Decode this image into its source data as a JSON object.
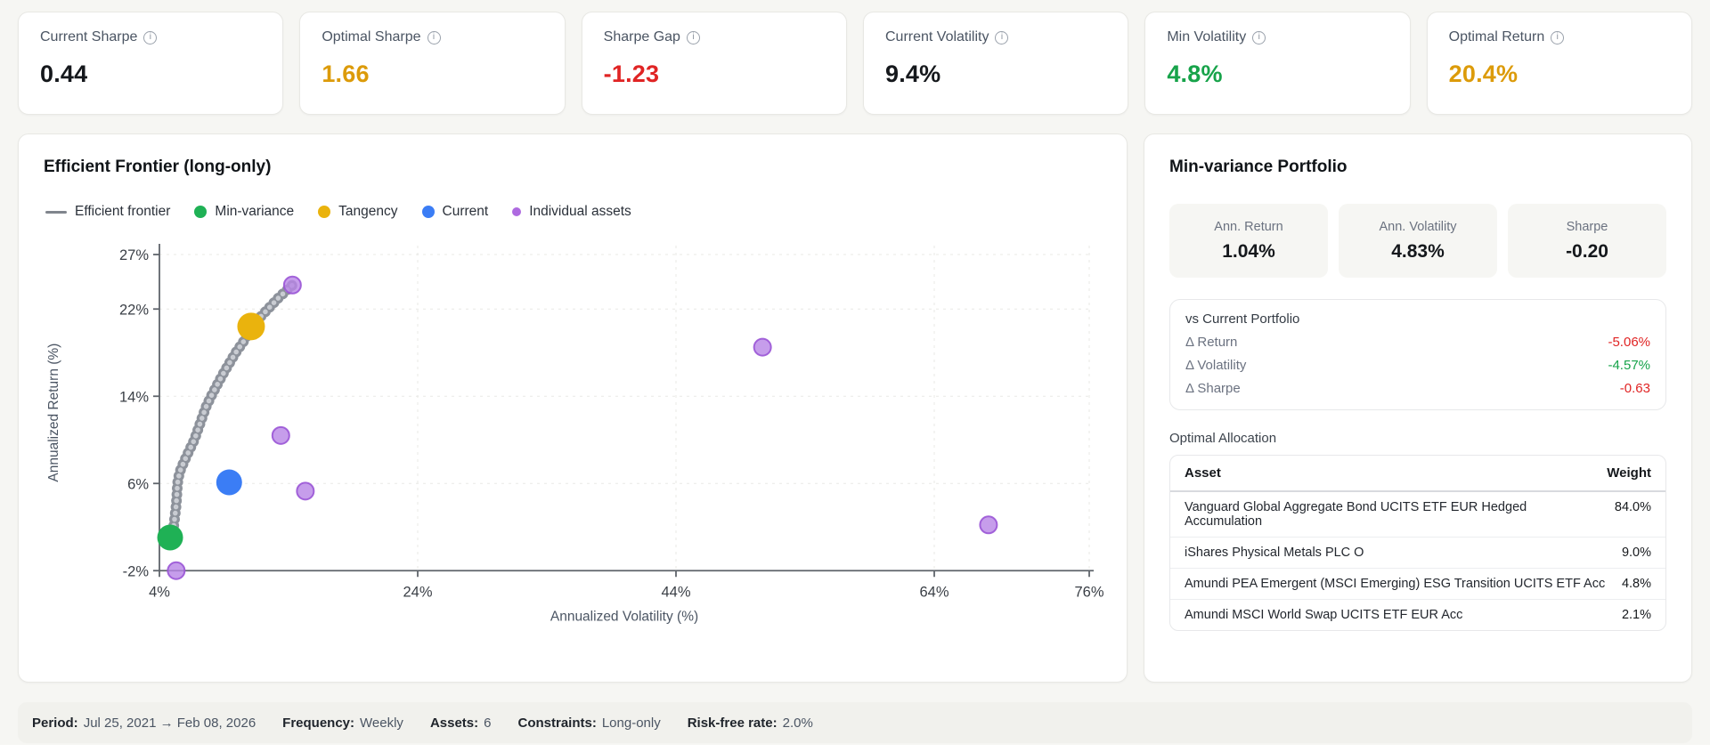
{
  "info_icon": "i",
  "stat_cards": [
    {
      "label": "Current Sharpe",
      "value": "0.44",
      "color": "#15181c"
    },
    {
      "label": "Optimal Sharpe",
      "value": "1.66",
      "color": "#dc9b0a"
    },
    {
      "label": "Sharpe Gap",
      "value": "-1.23",
      "color": "#e02424"
    },
    {
      "label": "Current Volatility",
      "value": "9.4%",
      "color": "#15181c"
    },
    {
      "label": "Min Volatility",
      "value": "4.8%",
      "color": "#17a34a"
    },
    {
      "label": "Optimal Return",
      "value": "20.4%",
      "color": "#dc9b0a"
    }
  ],
  "chart_panel": {
    "title": "Efficient Frontier (long-only)"
  },
  "chart_data": {
    "type": "scatter",
    "title": "Efficient Frontier (long-only)",
    "xlabel": "Annualized Volatility (%)",
    "ylabel": "Annualized Return (%)",
    "xlim": [
      4,
      76
    ],
    "ylim": [
      -2,
      27
    ],
    "x_ticks": [
      4,
      24,
      44,
      64,
      76
    ],
    "y_ticks": [
      -2,
      6,
      14,
      22,
      27
    ],
    "grid": true,
    "legend_position": "top",
    "series": [
      {
        "name": "Efficient frontier",
        "type": "line",
        "style": "dotted",
        "color": "#8d929b",
        "points": [
          [
            5.1,
            1.0
          ],
          [
            5.1,
            2.0
          ],
          [
            5.2,
            3.0
          ],
          [
            5.3,
            4.0
          ],
          [
            5.35,
            5.0
          ],
          [
            5.4,
            6.0
          ],
          [
            5.55,
            7.0
          ],
          [
            5.9,
            8.0
          ],
          [
            6.3,
            9.0
          ],
          [
            6.7,
            10.0
          ],
          [
            7.0,
            11.0
          ],
          [
            7.3,
            12.0
          ],
          [
            7.6,
            13.0
          ],
          [
            8.0,
            14.0
          ],
          [
            8.45,
            15.0
          ],
          [
            8.9,
            16.0
          ],
          [
            9.4,
            17.0
          ],
          [
            9.9,
            18.0
          ],
          [
            10.5,
            19.0
          ],
          [
            11.0,
            20.0
          ],
          [
            11.2,
            20.4
          ],
          [
            11.6,
            21.0
          ],
          [
            12.4,
            22.0
          ],
          [
            13.2,
            23.0
          ],
          [
            14.3,
            24.2
          ]
        ]
      },
      {
        "name": "Individual assets",
        "type": "points",
        "color": "#b885e6",
        "stroke": "#9a55d6",
        "radius": 9.5,
        "points": [
          [
            14.3,
            24.2
          ],
          [
            50.7,
            18.5
          ],
          [
            13.4,
            10.4
          ],
          [
            15.3,
            5.3
          ],
          [
            68.2,
            2.2
          ],
          [
            5.3,
            -2.0
          ]
        ]
      },
      {
        "name": "Current",
        "type": "point",
        "color": "#3b7df5",
        "point": [
          9.4,
          6.1
        ],
        "radius": 14.5
      },
      {
        "name": "Tangency",
        "type": "point",
        "color": "#eab30d",
        "point": [
          11.1,
          20.4
        ],
        "radius": 15.5
      },
      {
        "name": "Min-variance",
        "type": "point",
        "color": "#1fb155",
        "point": [
          4.83,
          1.04
        ],
        "radius": 14.5
      }
    ],
    "legend": [
      {
        "label": "Efficient frontier",
        "swatch": "line",
        "color": "#80858d"
      },
      {
        "label": "Min-variance",
        "swatch": "dot",
        "color": "#1fb155"
      },
      {
        "label": "Tangency",
        "swatch": "dot",
        "color": "#eab30d"
      },
      {
        "label": "Current",
        "swatch": "dot",
        "color": "#3b7df5"
      },
      {
        "label": "Individual assets",
        "swatch": "dot-small",
        "color": "#ae6ae0"
      }
    ]
  },
  "right_panel": {
    "title": "Min-variance Portfolio",
    "stats": [
      {
        "label": "Ann. Return",
        "value": "1.04%"
      },
      {
        "label": "Ann. Volatility",
        "value": "4.83%"
      },
      {
        "label": "Sharpe",
        "value": "-0.20"
      }
    ],
    "vs_current": {
      "title": "vs Current Portfolio",
      "rows": [
        {
          "label": "Δ Return",
          "value": "-5.06%",
          "color": "#e02424"
        },
        {
          "label": "Δ Volatility",
          "value": "-4.57%",
          "color": "#17a34a"
        },
        {
          "label": "Δ Sharpe",
          "value": "-0.63",
          "color": "#e02424"
        }
      ]
    },
    "allocation": {
      "label": "Optimal Allocation",
      "columns": [
        "Asset",
        "Weight"
      ],
      "rows": [
        {
          "asset": "Vanguard Global Aggregate Bond UCITS ETF EUR Hedged Accumulation",
          "weight": "84.0%"
        },
        {
          "asset": "iShares Physical Metals PLC O",
          "weight": "9.0%"
        },
        {
          "asset": "Amundi PEA Emergent (MSCI Emerging) ESG Transition UCITS ETF Acc",
          "weight": "4.8%"
        },
        {
          "asset": "Amundi MSCI World Swap UCITS ETF EUR Acc",
          "weight": "2.1%"
        }
      ]
    }
  },
  "footer": {
    "items": [
      {
        "label": "Period:",
        "value": "Jul 25, 2021 → Feb 08, 2026"
      },
      {
        "label": "Frequency:",
        "value": "Weekly"
      },
      {
        "label": "Assets:",
        "value": "6"
      },
      {
        "label": "Constraints:",
        "value": "Long-only"
      },
      {
        "label": "Risk-free rate:",
        "value": "2.0%"
      }
    ]
  }
}
